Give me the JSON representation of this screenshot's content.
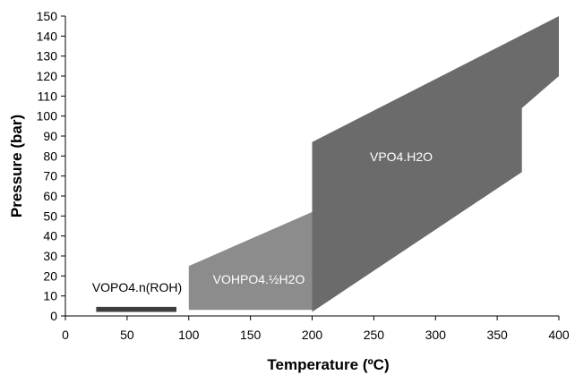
{
  "chart_data": {
    "type": "area",
    "xlabel": "Temperature (ºC)",
    "ylabel": "Pressure (bar)",
    "xlim": [
      0,
      400
    ],
    "ylim": [
      0,
      150
    ],
    "xticks": [
      0,
      50,
      100,
      150,
      200,
      250,
      300,
      350,
      400
    ],
    "yticks": [
      0,
      10,
      20,
      30,
      40,
      50,
      60,
      70,
      80,
      90,
      100,
      110,
      120,
      130,
      140,
      150
    ],
    "grid": false,
    "legend": "none",
    "regions": [
      {
        "label": "VOPO4.n(ROH)",
        "shape": "bar",
        "points": [
          [
            25,
            2
          ],
          [
            90,
            2
          ],
          [
            90,
            4.5
          ],
          [
            25,
            4.5
          ]
        ],
        "color": "#3d3d3d",
        "label_color": "#000000"
      },
      {
        "label": "VOHPO4.½H2O",
        "shape": "polygon",
        "points": [
          [
            100,
            3
          ],
          [
            200,
            3
          ],
          [
            200,
            52
          ],
          [
            100,
            25
          ]
        ],
        "color": "#8c8c8c",
        "label_color": "#ffffff"
      },
      {
        "label": "VPO4.H2O",
        "shape": "polygon",
        "points": [
          [
            200,
            2
          ],
          [
            370,
            72
          ],
          [
            370,
            104
          ],
          [
            400,
            120
          ],
          [
            400,
            150
          ],
          [
            200,
            87
          ]
        ],
        "color": "#6b6b6b",
        "label_color": "#ffffff"
      }
    ]
  }
}
